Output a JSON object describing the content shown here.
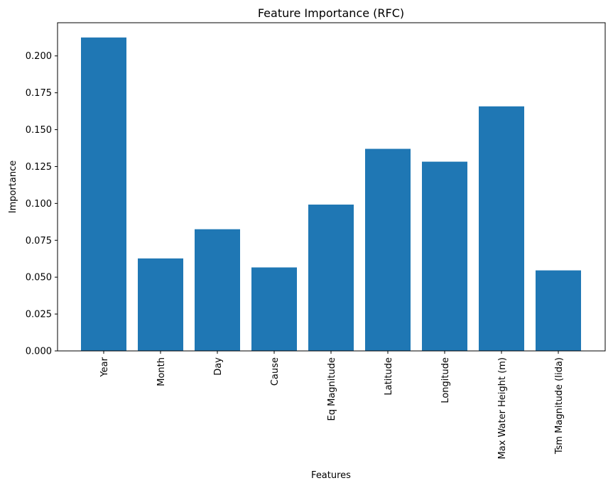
{
  "chart_data": {
    "type": "bar",
    "title": "Feature Importance (RFC)",
    "xlabel": "Features",
    "ylabel": "Importance",
    "categories": [
      "Year",
      "Month",
      "Day",
      "Cause",
      "Eq Magnitude",
      "Latitude",
      "Longitude",
      "Max Water Height (m)",
      "Tsm Magnitude (Iida)"
    ],
    "values": [
      0.2125,
      0.0627,
      0.0825,
      0.0566,
      0.0992,
      0.137,
      0.1283,
      0.1658,
      0.0546
    ],
    "ylim": [
      0,
      0.2225
    ],
    "yticks": [
      "0.000",
      "0.025",
      "0.050",
      "0.075",
      "0.100",
      "0.125",
      "0.150",
      "0.175",
      "0.200"
    ],
    "ytick_values": [
      0,
      0.025,
      0.05,
      0.075,
      0.1,
      0.125,
      0.15,
      0.175,
      0.2
    ],
    "grid": false,
    "legend": "none",
    "bar_color": "#1f77b4"
  }
}
